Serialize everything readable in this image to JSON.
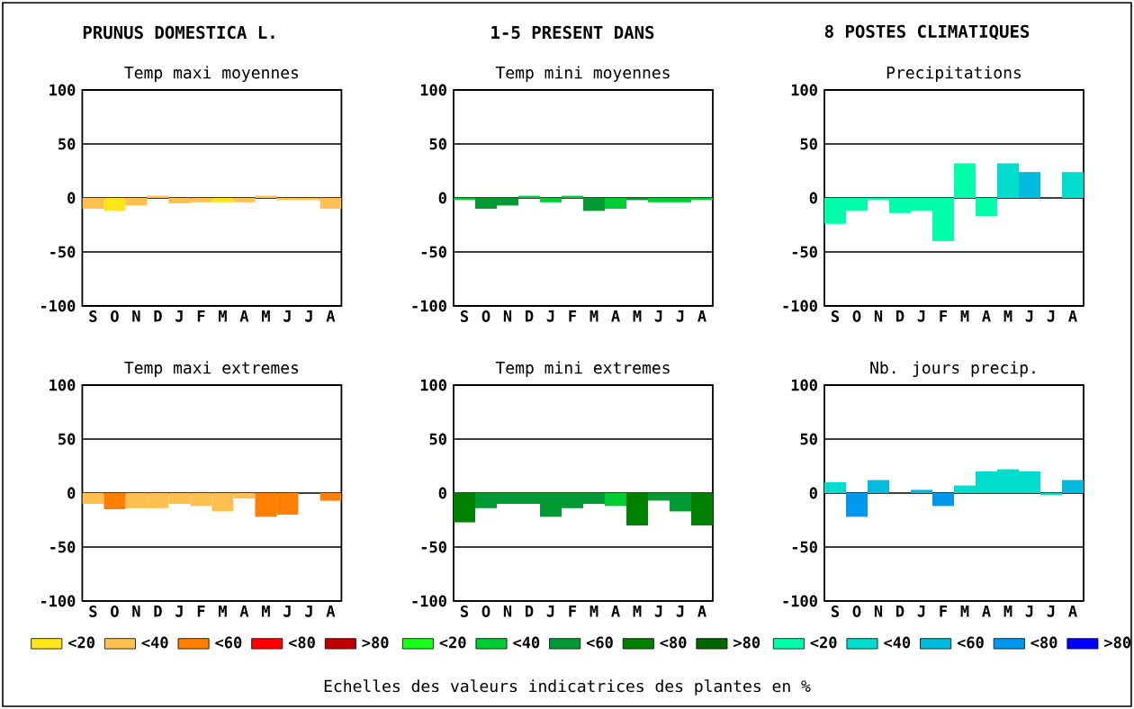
{
  "chart_data": [
    {
      "type": "bar",
      "title": "Temp maxi moyennes",
      "categories": [
        "S",
        "O",
        "N",
        "D",
        "J",
        "F",
        "M",
        "A",
        "M",
        "J",
        "J",
        "A"
      ],
      "values": [
        -10,
        -12,
        -7,
        2,
        -5,
        -4,
        -4,
        -4,
        2,
        -2,
        -2,
        -10
      ],
      "colors": [
        "#ffc050",
        "#ffe619",
        "#ffc050",
        "#ffc050",
        "#ffc050",
        "#ffc050",
        "#ffe619",
        "#ffc050",
        "#ffc050",
        "#ffc050",
        "#ffc050",
        "#ffc050"
      ],
      "ylim": [
        -100,
        100
      ],
      "yticks": [
        -100,
        -50,
        0,
        50,
        100
      ],
      "grid": "y",
      "annotations": [
        "PRUNUS DOMESTICA L.",
        "1-5 PRESENT DANS",
        "8 POSTES CLIMATIQUES"
      ]
    },
    {
      "type": "bar",
      "title": "Temp mini moyennes",
      "categories": [
        "S",
        "O",
        "N",
        "D",
        "J",
        "F",
        "M",
        "A",
        "M",
        "J",
        "J",
        "A"
      ],
      "values": [
        -2,
        -10,
        -7,
        2,
        -4,
        2,
        -12,
        -10,
        -2,
        -4,
        -4,
        -2
      ],
      "colors": [
        "#00cc33",
        "#009933",
        "#009933",
        "#00cc33",
        "#00cc33",
        "#00cc33",
        "#009933",
        "#00cc33",
        "#009933",
        "#00cc33",
        "#00cc33",
        "#00cc33"
      ],
      "ylim": [
        -100,
        100
      ],
      "yticks": [
        -100,
        -50,
        0,
        50,
        100
      ],
      "grid": "y"
    },
    {
      "type": "bar",
      "title": "Precipitations",
      "categories": [
        "S",
        "O",
        "N",
        "D",
        "J",
        "F",
        "M",
        "A",
        "M",
        "J",
        "J",
        "A"
      ],
      "values": [
        -24,
        -12,
        -2,
        -14,
        -12,
        -40,
        32,
        -17,
        32,
        24,
        null,
        24
      ],
      "colors": [
        "#00ffaa",
        "#00ffaa",
        "#00ffaa",
        "#00ffaa",
        "#00ffaa",
        "#00ffaa",
        "#00ffaa",
        "#00ffaa",
        "#00ddcc",
        "#00bbdd",
        null,
        "#00ddcc"
      ],
      "ylim": [
        -100,
        100
      ],
      "yticks": [
        -100,
        -50,
        0,
        50,
        100
      ],
      "grid": "y"
    },
    {
      "type": "bar",
      "title": "Temp maxi extremes",
      "categories": [
        "S",
        "O",
        "N",
        "D",
        "J",
        "F",
        "M",
        "A",
        "M",
        "J",
        "J",
        "A"
      ],
      "series": [
        {
          "name": "<20",
          "color": "#ffe619",
          "values": [
            null,
            null,
            null,
            null,
            null,
            null,
            null,
            null,
            null,
            null,
            null,
            null
          ]
        },
        {
          "name": "<40",
          "color": "#ffc050",
          "values": [
            -10,
            null,
            -14,
            -14,
            -10,
            -12,
            -17,
            -5,
            null,
            null,
            null,
            null
          ]
        },
        {
          "name": "<60",
          "color": "#ff8000",
          "values": [
            null,
            -15,
            null,
            null,
            null,
            null,
            null,
            null,
            -22,
            -20,
            null,
            -7
          ]
        },
        {
          "name": "<80",
          "color": "#ff0000",
          "values": [
            null,
            null,
            null,
            null,
            null,
            null,
            null,
            null,
            null,
            null,
            null,
            null
          ]
        },
        {
          "name": ">80",
          "color": "#c00000",
          "values": [
            null,
            null,
            null,
            null,
            null,
            null,
            null,
            null,
            null,
            null,
            null,
            null
          ]
        }
      ],
      "ylim": [
        -100,
        100
      ],
      "yticks": [
        -100,
        -50,
        0,
        50,
        100
      ],
      "grid": "y",
      "legend": "bottom"
    },
    {
      "type": "bar",
      "title": "Temp mini extremes",
      "categories": [
        "S",
        "O",
        "N",
        "D",
        "J",
        "F",
        "M",
        "A",
        "M",
        "J",
        "J",
        "A"
      ],
      "series": [
        {
          "name": "<20",
          "color": "#19ff19",
          "values": [
            null,
            null,
            null,
            null,
            null,
            null,
            null,
            null,
            null,
            null,
            null,
            null
          ]
        },
        {
          "name": "<40",
          "color": "#00cc33",
          "values": [
            null,
            null,
            null,
            null,
            null,
            null,
            null,
            -12,
            null,
            null,
            null,
            null
          ]
        },
        {
          "name": "<60",
          "color": "#009933",
          "values": [
            null,
            -14,
            -10,
            -10,
            -22,
            -14,
            -10,
            null,
            null,
            -7,
            -17,
            null
          ]
        },
        {
          "name": "<80",
          "color": "#008000",
          "values": [
            -27,
            null,
            null,
            null,
            null,
            null,
            null,
            null,
            -30,
            null,
            null,
            -30
          ]
        },
        {
          "name": ">80",
          "color": "#006600",
          "values": [
            null,
            null,
            null,
            null,
            null,
            null,
            null,
            null,
            null,
            null,
            null,
            null
          ]
        }
      ],
      "ylim": [
        -100,
        100
      ],
      "yticks": [
        -100,
        -50,
        0,
        50,
        100
      ],
      "grid": "y",
      "legend": "bottom",
      "annotations": [
        "Echelles des valeurs indicatrices des plantes en %"
      ]
    },
    {
      "type": "bar",
      "title": "Nb. jours precip.",
      "categories": [
        "S",
        "O",
        "N",
        "D",
        "J",
        "F",
        "M",
        "A",
        "M",
        "J",
        "J",
        "A"
      ],
      "series": [
        {
          "name": "<20",
          "color": "#00ffaa",
          "values": [
            null,
            null,
            null,
            null,
            null,
            null,
            null,
            null,
            null,
            null,
            null,
            null
          ]
        },
        {
          "name": "<40",
          "color": "#00ddcc",
          "values": [
            10,
            null,
            null,
            null,
            null,
            null,
            7,
            20,
            22,
            20,
            -2,
            null
          ]
        },
        {
          "name": "<60",
          "color": "#00bbdd",
          "values": [
            null,
            null,
            12,
            null,
            3,
            null,
            null,
            null,
            null,
            null,
            null,
            12
          ]
        },
        {
          "name": "<80",
          "color": "#0099ee",
          "values": [
            null,
            -22,
            null,
            null,
            null,
            -12,
            null,
            null,
            null,
            null,
            null,
            null
          ]
        },
        {
          "name": ">80",
          "color": "#0000ff",
          "values": [
            null,
            null,
            null,
            null,
            null,
            null,
            null,
            null,
            null,
            null,
            null,
            null
          ]
        }
      ],
      "ylim": [
        -100,
        100
      ],
      "yticks": [
        -100,
        -50,
        0,
        50,
        100
      ],
      "grid": "y",
      "legend": "bottom"
    }
  ]
}
